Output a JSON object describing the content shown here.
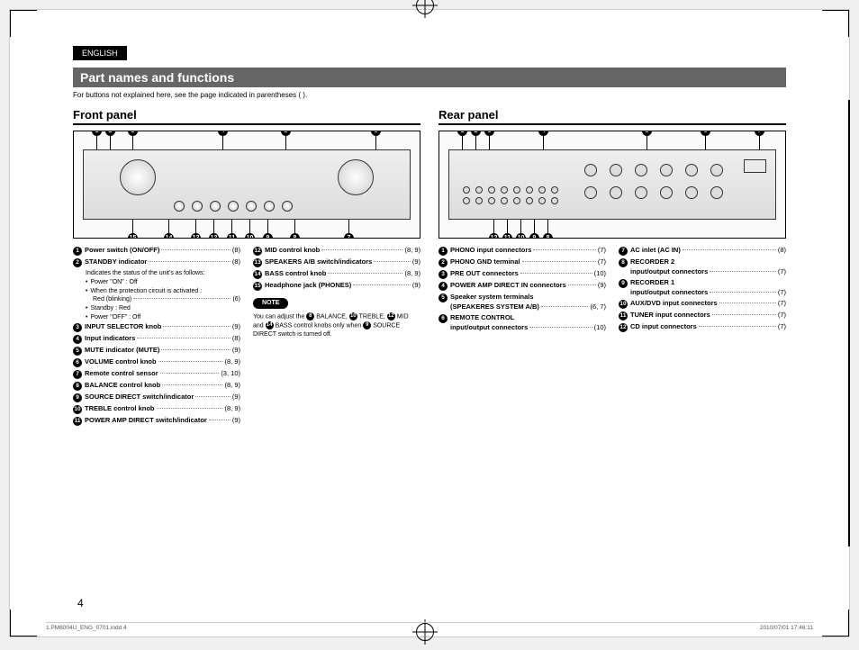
{
  "lang": "ENGLISH",
  "section_title": "Part names and functions",
  "section_note": "For buttons not explained here, see the page indicated in parentheses (  ).",
  "front": {
    "title": "Front panel",
    "callouts_top": [
      "1",
      "2",
      "3",
      "4",
      "5",
      "6"
    ],
    "callouts_bot": [
      "15",
      "14",
      "13",
      "12",
      "11",
      "10",
      "9",
      "8",
      "7"
    ],
    "col1": [
      {
        "n": "1",
        "label": "Power switch (ON/OFF)",
        "page": "(8)"
      },
      {
        "n": "2",
        "label": "STANDBY indicator",
        "page": "(8)",
        "sub": [
          {
            "t": "Indicates the status of the unit's as follows:"
          },
          {
            "b": "•",
            "t": "Power \"ON\" : Off"
          },
          {
            "b": "•",
            "t": "When the protection circuit is activated :"
          },
          {
            "t": "Red (blinking)",
            "page": "(6)",
            "dots": true,
            "indent": true
          },
          {
            "b": "•",
            "t": "Standby : Red"
          },
          {
            "b": "•",
            "t": "Power \"OFF\" : Off"
          }
        ]
      },
      {
        "n": "3",
        "label": "INPUT SELECTOR knob",
        "page": "(9)"
      },
      {
        "n": "4",
        "label": "Input indicators",
        "page": "(8)"
      },
      {
        "n": "5",
        "label": "MUTE indicator (MUTE)",
        "page": "(9)"
      },
      {
        "n": "6",
        "label": "VOLUME control knob",
        "page": "(8, 9)"
      },
      {
        "n": "7",
        "label": "Remote control sensor",
        "page": "(3, 10)"
      },
      {
        "n": "8",
        "label": "BALANCE control knob",
        "page": "(8, 9)"
      },
      {
        "n": "9",
        "label": "SOURCE DIRECT switch/indicator",
        "page": "(9)"
      },
      {
        "n": "10",
        "label": "TREBLE control knob",
        "page": "(8, 9)"
      },
      {
        "n": "11",
        "label": "POWER AMP DIRECT switch/indicator",
        "page": "(9)"
      }
    ],
    "col2": [
      {
        "n": "12",
        "label": "MID control knob",
        "page": "(8, 9)"
      },
      {
        "n": "13",
        "label": "SPEAKERS A/B switch/indicators",
        "page": "(9)"
      },
      {
        "n": "14",
        "label": "BASS control knob",
        "page": "(8, 9)"
      },
      {
        "n": "15",
        "label": "Headphone jack (PHONES)",
        "page": "(9)"
      }
    ],
    "note_label": "NOTE",
    "note_text_pre": "You can adjust the ",
    "note_nums": [
      "8",
      "10",
      "12",
      "14",
      "9"
    ],
    "note_text_parts": [
      " BALANCE, ",
      " TREBLE, ",
      " MID and ",
      " BASS control knobs only when ",
      " SOURCE DIRECT switch is turned off."
    ]
  },
  "rear": {
    "title": "Rear panel",
    "callouts_top": [
      "1",
      "2",
      "3",
      "4",
      "5",
      "6",
      "7"
    ],
    "callouts_bot": [
      "12",
      "11",
      "10",
      "9",
      "8"
    ],
    "col1": [
      {
        "n": "1",
        "label": "PHONO input connectors",
        "page": "(7)"
      },
      {
        "n": "2",
        "label": "PHONO GND terminal",
        "page": "(7)"
      },
      {
        "n": "3",
        "label": "PRE OUT connectors",
        "page": "(10)"
      },
      {
        "n": "4",
        "label": "POWER AMP DIRECT IN connectors",
        "page": "(9)"
      },
      {
        "n": "5",
        "label": "Speaker system terminals",
        "label2": "(SPEAKERES SYSTEM A/B)",
        "page": "(6, 7)"
      },
      {
        "n": "6",
        "label": "REMOTE CONTROL",
        "label2": "input/output connectors",
        "page": "(10)"
      }
    ],
    "col2": [
      {
        "n": "7",
        "label": "AC inlet (AC IN)",
        "page": "(8)"
      },
      {
        "n": "8",
        "label": "RECORDER 2",
        "label2": "input/output connectors",
        "page": "(7)"
      },
      {
        "n": "9",
        "label": "RECORDER 1",
        "label2": "input/output connectors",
        "page": "(7)"
      },
      {
        "n": "10",
        "label": "AUX/DVD input connectors",
        "page": "(7)"
      },
      {
        "n": "11",
        "label": "TUNER input connectors",
        "page": "(7)"
      },
      {
        "n": "12",
        "label": "CD input connectors",
        "page": "(7)"
      }
    ]
  },
  "pagenum": "4",
  "footer_left": "1.PM8004U_ENG_0701.indd   4",
  "footer_right": "2010/07/01   17:46:11"
}
